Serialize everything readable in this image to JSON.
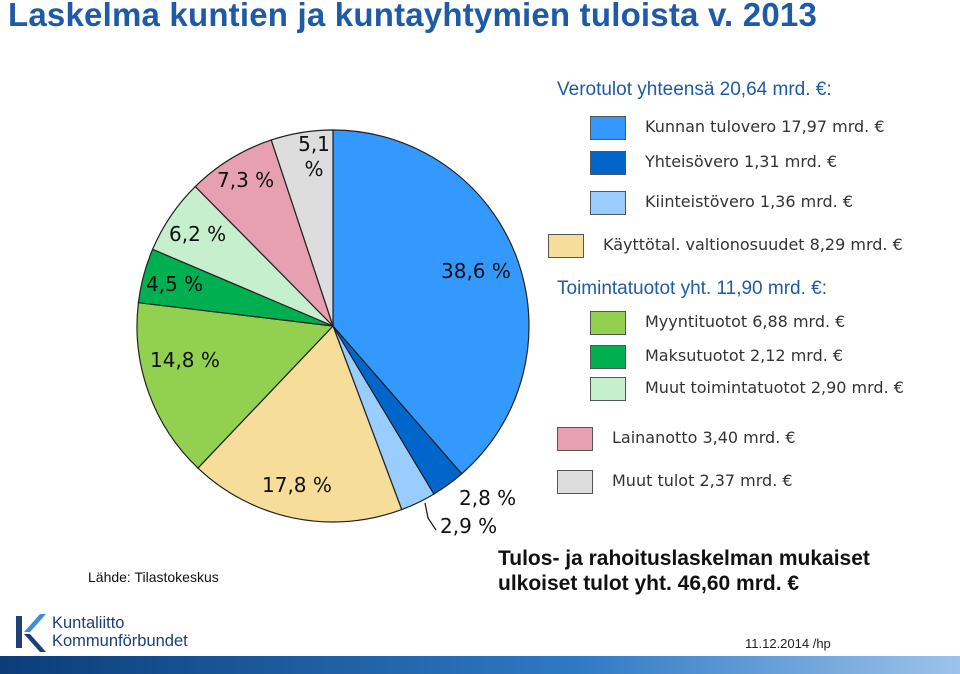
{
  "title": "Laskelma kuntien ja kuntayhtymien tuloista v. 2013",
  "chart_data": {
    "type": "pie",
    "title": "Laskelma kuntien ja kuntayhtymien tuloista v. 2013",
    "slices": [
      {
        "name": "Kunnan tulovero 17,97 mrd. €",
        "value": 38.6,
        "label": "38,6 %",
        "color": "#3399ff"
      },
      {
        "name": "Yhteisövero 1,31 mrd. €",
        "value": 2.8,
        "label": "2,8 %",
        "color": "#0066cc"
      },
      {
        "name": "Kiinteistövero 1,36 mrd. €",
        "value": 2.9,
        "label": "2,9 %",
        "color": "#99ccff"
      },
      {
        "name": "Käyttötal. valtionosuudet 8,29 mrd. €",
        "value": 17.8,
        "label": "17,8 %",
        "color": "#f7dd9a"
      },
      {
        "name": "Myyntituotot 6,88 mrd. €",
        "value": 14.8,
        "label": "14,8 %",
        "color": "#92d050"
      },
      {
        "name": "Maksutuotot 2,12 mrd. €",
        "value": 4.5,
        "label": "4,5 %",
        "color": "#00b050"
      },
      {
        "name": "Muut toimintatuotot 2,90 mrd. €",
        "value": 6.2,
        "label": "6,2 %",
        "color": "#c6efce"
      },
      {
        "name": "Lainanotto 3,40 mrd. €",
        "value": 7.3,
        "label": "7,3 %",
        "color": "#e6a0b0"
      },
      {
        "name": "Muut tulot 2,37 mrd. €",
        "value": 5.1,
        "label": "5,1 %",
        "color": "#dddddd"
      }
    ],
    "legend_position": "right"
  },
  "legend": {
    "verotulot_header": "Verotulot yhteensä 20,64 mrd. €:",
    "toimintatuotot_header": "Toimintatuotot yht. 11,90 mrd. €:",
    "header_color": "#1f5aa6"
  },
  "source": "Lähde: Tilastokeskus",
  "summary": {
    "line1": "Tulos- ja rahoituslaskelman mukaiset",
    "line2": "ulkoiset tulot yht. 46,60 mrd. €"
  },
  "logo": {
    "line1": "Kuntaliitto",
    "line2": "Kommunförbundet",
    "icon": "kuntaliitto-logo-icon"
  },
  "date": "11.12.2014 /hp"
}
